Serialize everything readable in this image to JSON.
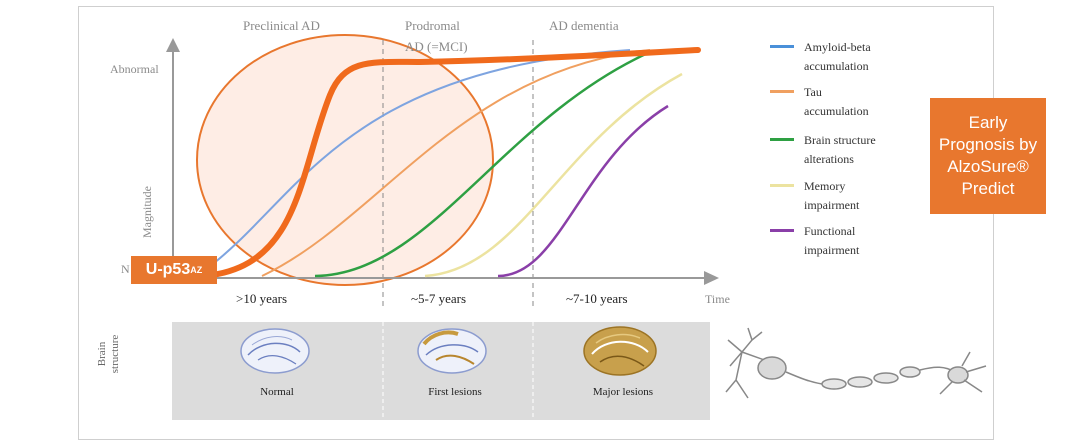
{
  "stages": {
    "preclinical": "Preclinical AD",
    "prodromal_line1": "Prodromal",
    "prodromal_line2": "AD (=MCI)",
    "dementia": "AD dementia"
  },
  "axes": {
    "abnormal": "Abnormal",
    "normal": "N",
    "magnitude": "Magnitude",
    "time": "Time"
  },
  "periods": [
    ">10 years",
    "~5-7 years",
    "~7-10 years"
  ],
  "legend": [
    {
      "line1": "Amyloid-beta",
      "line2": "accumulation",
      "color": "#4a90d9"
    },
    {
      "line1": "Tau",
      "line2": "accumulation",
      "color": "#f0a060"
    },
    {
      "line1": "Brain structure",
      "line2": "alterations",
      "color": "#2ea043"
    },
    {
      "line1": "Memory",
      "line2": "impairment",
      "color": "#ece3a0"
    },
    {
      "line1": "Functional",
      "line2": "impairment",
      "color": "#8a3fa8"
    }
  ],
  "callout": {
    "line1": "Early",
    "line2": "Prognosis by",
    "line3": "AlzoSure®",
    "line4": "Predict"
  },
  "badge": {
    "main": "U-p53",
    "sup": "AZ"
  },
  "brain_strip": {
    "label_line1": "Brain",
    "label_line2": "structure",
    "captions": [
      "Normal",
      "First lesions",
      "Major lesions"
    ]
  },
  "colors": {
    "highlight": "#e8772e",
    "circle_fill": "#fde7dc"
  }
}
